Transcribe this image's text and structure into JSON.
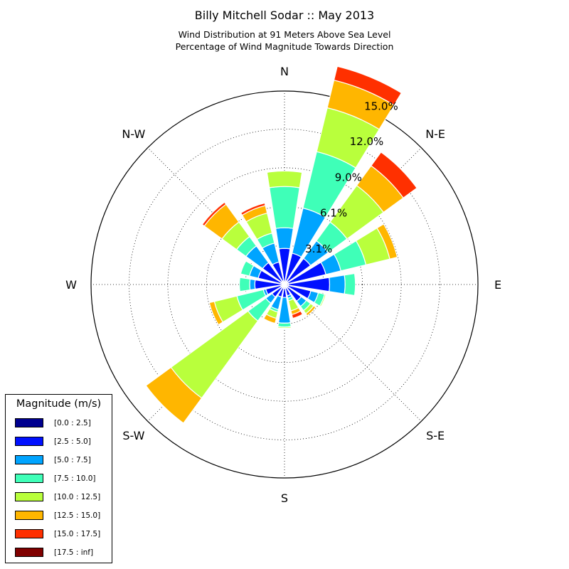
{
  "title": "Billy Mitchell Sodar :: May 2013",
  "subtitle_line1": "Wind Distribution at 91 Meters Above Sea Level",
  "subtitle_line2": "Percentage of Wind Magnitude Towards Direction",
  "legend": {
    "title": "Magnitude (m/s)",
    "items": [
      {
        "label": "[0.0 : 2.5]",
        "color": "#00008f"
      },
      {
        "label": "[2.5 : 5.0]",
        "color": "#0010ff"
      },
      {
        "label": "[5.0 : 7.5]",
        "color": "#00a4ff"
      },
      {
        "label": "[7.5 : 10.0]",
        "color": "#3fffb8"
      },
      {
        "label": "[10.0 : 12.5]",
        "color": "#b9ff3c"
      },
      {
        "label": "[12.5 : 15.0]",
        "color": "#ffb600"
      },
      {
        "label": "[15.0 : 17.5]",
        "color": "#ff3000"
      },
      {
        "label": "[17.5 : inf]",
        "color": "#800000"
      }
    ]
  },
  "chart_data": {
    "type": "windrose",
    "directions": [
      "N",
      "N-E",
      "E",
      "S-E",
      "S",
      "S-W",
      "W",
      "N-W"
    ],
    "direction_labels": [
      "N",
      "N-E",
      "E",
      "S-E",
      "S",
      "S-W",
      "W",
      "N-W"
    ],
    "radial_ticks": [
      "3.1%",
      "6.1%",
      "9.0%",
      "12.0%",
      "15.0%"
    ],
    "radial_tick_values": [
      3.05,
      6.05,
      9.05,
      12.05,
      15.0
    ],
    "rmax": 15.0,
    "sector_count": 16,
    "sector_angles_deg": [
      0,
      22.5,
      45,
      67.5,
      90,
      112.5,
      135,
      157.5,
      180,
      202.5,
      225,
      247.5,
      270,
      292.5,
      315,
      337.5
    ],
    "series": [
      {
        "name": "[0.0 : 2.5]",
        "values": [
          0.2,
          0.3,
          0.3,
          0.3,
          0.3,
          0.3,
          0.3,
          0.3,
          0.3,
          0.3,
          0.3,
          0.3,
          0.2,
          0.3,
          0.3,
          0.3
        ]
      },
      {
        "name": "[2.5 : 5.0]",
        "values": [
          2.6,
          2.2,
          2.2,
          3.0,
          3.2,
          1.8,
          1.3,
          0.6,
          0.7,
          0.7,
          0.9,
          1.2,
          2.1,
          1.8,
          1.8,
          1.5
        ]
      },
      {
        "name": "[5.0 : 7.5]",
        "values": [
          1.6,
          3.6,
          1.7,
          1.2,
          1.2,
          0.6,
          0.5,
          0.2,
          2.0,
          1.0,
          0.6,
          0.2,
          0.4,
          0.7,
          1.6,
          1.5
        ]
      },
      {
        "name": "[7.5 : 10.0]",
        "values": [
          3.2,
          4.5,
          1.8,
          2.0,
          0.8,
          0.5,
          0.4,
          0.2,
          0.3,
          0.2,
          1.7,
          2.1,
          0.8,
          0.7,
          0.9,
          0.8
        ]
      },
      {
        "name": "[10.0 : 12.5]",
        "values": [
          1.2,
          3.5,
          3.5,
          1.9,
          0.0,
          0.1,
          0.3,
          0.8,
          0.1,
          0.5,
          7.4,
          1.8,
          0.0,
          0.0,
          1.4,
          1.6
        ]
      },
      {
        "name": "[12.5 : 15.0]",
        "values": [
          0.0,
          2.2,
          1.9,
          0.6,
          0.0,
          0.0,
          0.2,
          0.3,
          0.0,
          0.4,
          2.4,
          0.4,
          0.0,
          0.0,
          1.7,
          0.6
        ]
      },
      {
        "name": "[15.0 : 17.5]",
        "values": [
          0.0,
          1.1,
          1.3,
          0.0,
          0.0,
          0.0,
          0.0,
          0.3,
          0.0,
          0.0,
          0.0,
          0.0,
          0.0,
          0.0,
          0.2,
          0.2
        ]
      },
      {
        "name": "[17.5 : inf]",
        "values": [
          0.0,
          0.0,
          0.0,
          0.0,
          0.0,
          0.0,
          0.0,
          0.0,
          0.0,
          0.0,
          0.0,
          0.0,
          0.0,
          0.0,
          0.0,
          0.0
        ]
      }
    ]
  }
}
